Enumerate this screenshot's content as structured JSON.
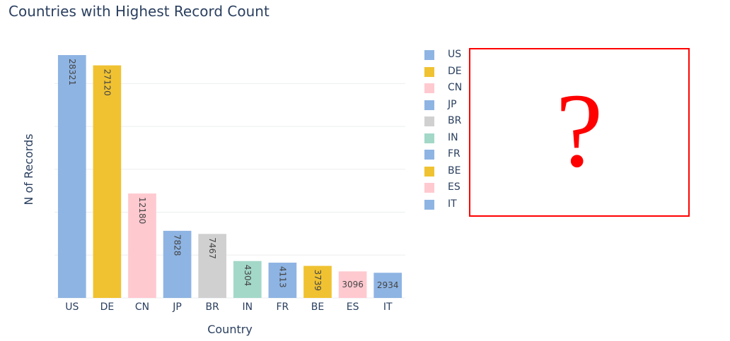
{
  "chart_data": {
    "type": "bar",
    "title": "Countries with Highest Record Count",
    "xlabel": "Country",
    "ylabel": "N of Records",
    "categories": [
      "US",
      "DE",
      "CN",
      "JP",
      "BR",
      "IN",
      "FR",
      "BE",
      "ES",
      "IT"
    ],
    "values": [
      28321,
      27120,
      12180,
      7828,
      7467,
      4304,
      4113,
      3739,
      3096,
      2934
    ],
    "colors": [
      "#8eb4e3",
      "#f0c232",
      "#ffc9d0",
      "#8eb4e3",
      "#d0d0d0",
      "#a3d8c8",
      "#8eb4e3",
      "#f0c232",
      "#ffc9d0",
      "#8eb4e3"
    ],
    "ylim": [
      0,
      28321
    ],
    "grid": true,
    "legend": "right",
    "legend_entries": [
      "US",
      "DE",
      "CN",
      "JP",
      "BR",
      "IN",
      "FR",
      "BE",
      "ES",
      "IT"
    ]
  },
  "overlay": {
    "mark": "?",
    "color": "#ff0000"
  }
}
